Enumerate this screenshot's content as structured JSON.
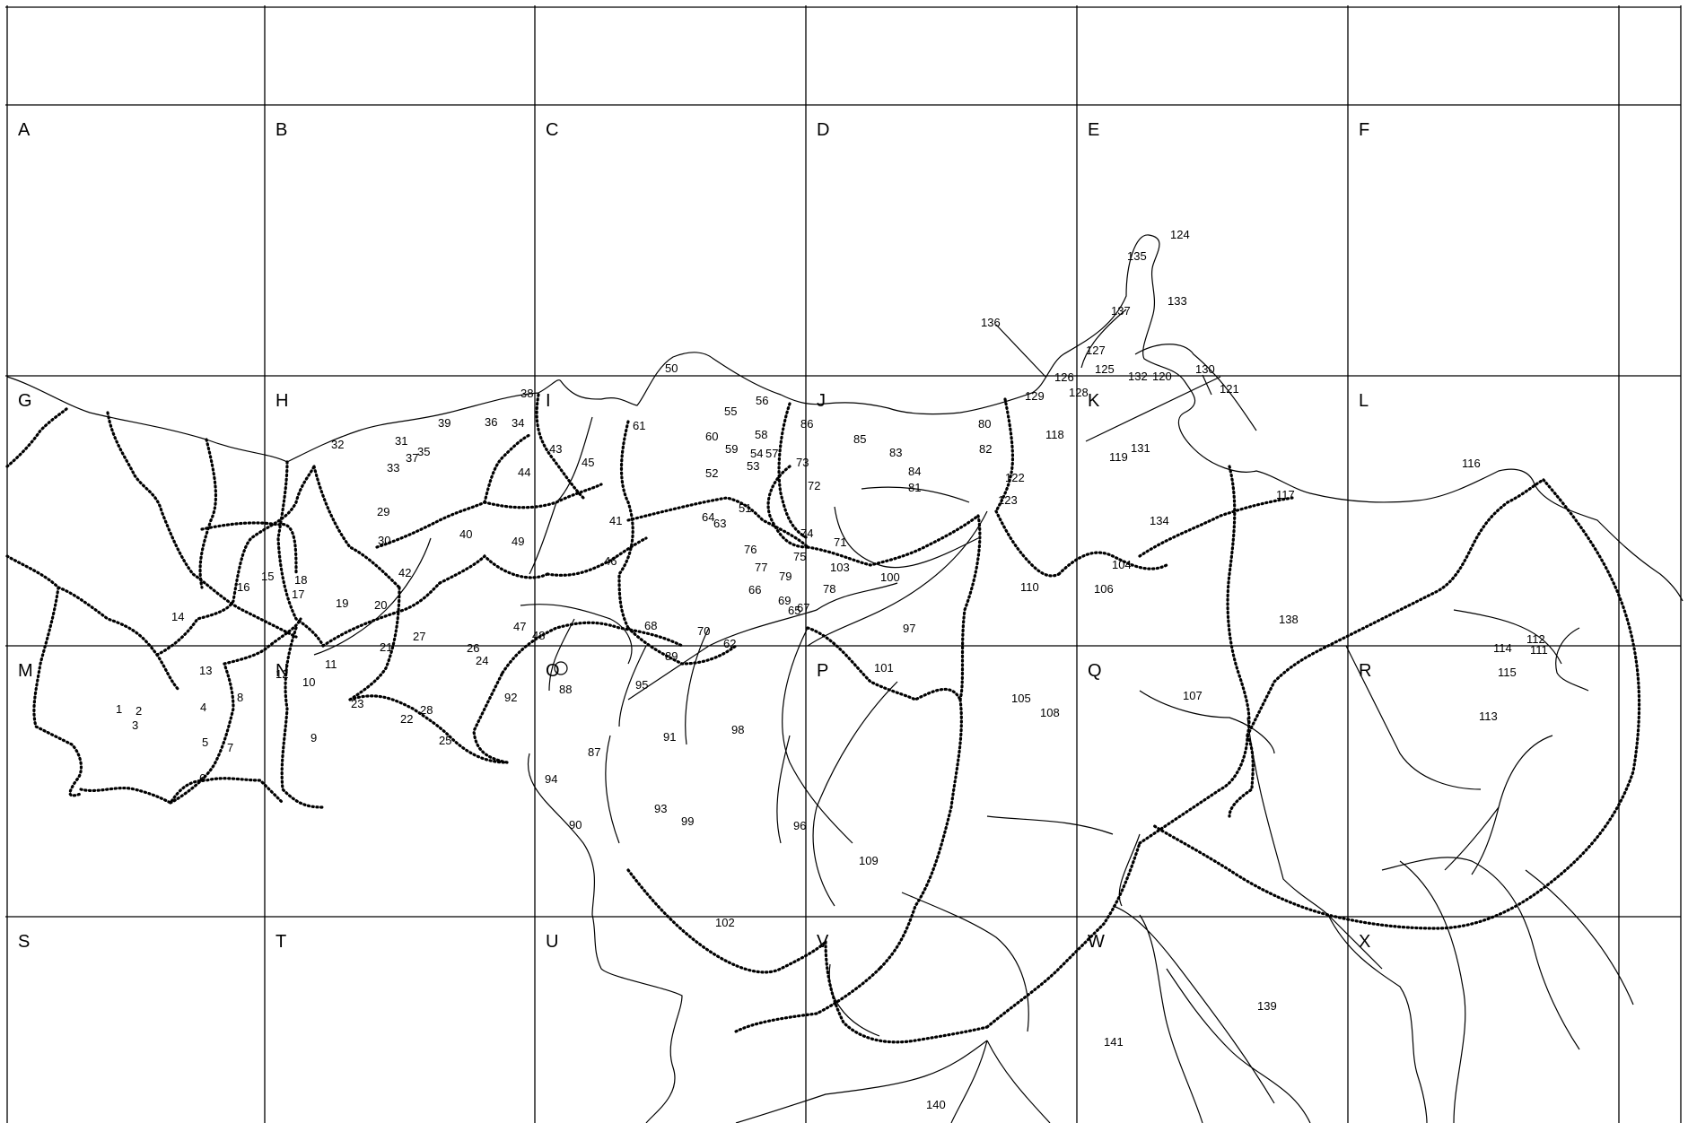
{
  "map": {
    "grid_columns": 6,
    "grid_rows": 4,
    "cell_labels": [
      "A",
      "B",
      "C",
      "D",
      "E",
      "F",
      "G",
      "H",
      "I",
      "J",
      "K",
      "L",
      "M",
      "N",
      "O",
      "P",
      "Q",
      "R",
      "S",
      "T",
      "U",
      "V",
      "W",
      "X"
    ],
    "numbers": [
      "1",
      "2",
      "3",
      "4",
      "5",
      "6",
      "7",
      "8",
      "9",
      "10",
      "11",
      "12",
      "13",
      "14",
      "15",
      "16",
      "17",
      "18",
      "19",
      "20",
      "21",
      "22",
      "23",
      "24",
      "25",
      "26",
      "27",
      "28",
      "29",
      "30",
      "31",
      "32",
      "33",
      "34",
      "35",
      "36",
      "37",
      "38",
      "39",
      "40",
      "41",
      "42",
      "43",
      "44",
      "45",
      "46",
      "47",
      "48",
      "49",
      "50",
      "51",
      "52",
      "53",
      "54",
      "55",
      "56",
      "57",
      "58",
      "59",
      "60",
      "61",
      "62",
      "63",
      "64",
      "65",
      "66",
      "67",
      "68",
      "69",
      "70",
      "71",
      "72",
      "73",
      "74",
      "75",
      "76",
      "77",
      "78",
      "79",
      "80",
      "81",
      "82",
      "83",
      "84",
      "85",
      "86",
      "87",
      "88",
      "89",
      "90",
      "91",
      "92",
      "93",
      "94",
      "95",
      "96",
      "97",
      "98",
      "99",
      "100",
      "101",
      "102",
      "103",
      "104",
      "105",
      "106",
      "107",
      "108",
      "109",
      "110",
      "111",
      "112",
      "113",
      "114",
      "115",
      "116",
      "117",
      "118",
      "119",
      "120",
      "121",
      "122",
      "123",
      "124",
      "125",
      "126",
      "127",
      "128",
      "129",
      "130",
      "131",
      "132",
      "133",
      "134",
      "135",
      "136",
      "137",
      "138",
      "139",
      "140",
      "141"
    ]
  }
}
